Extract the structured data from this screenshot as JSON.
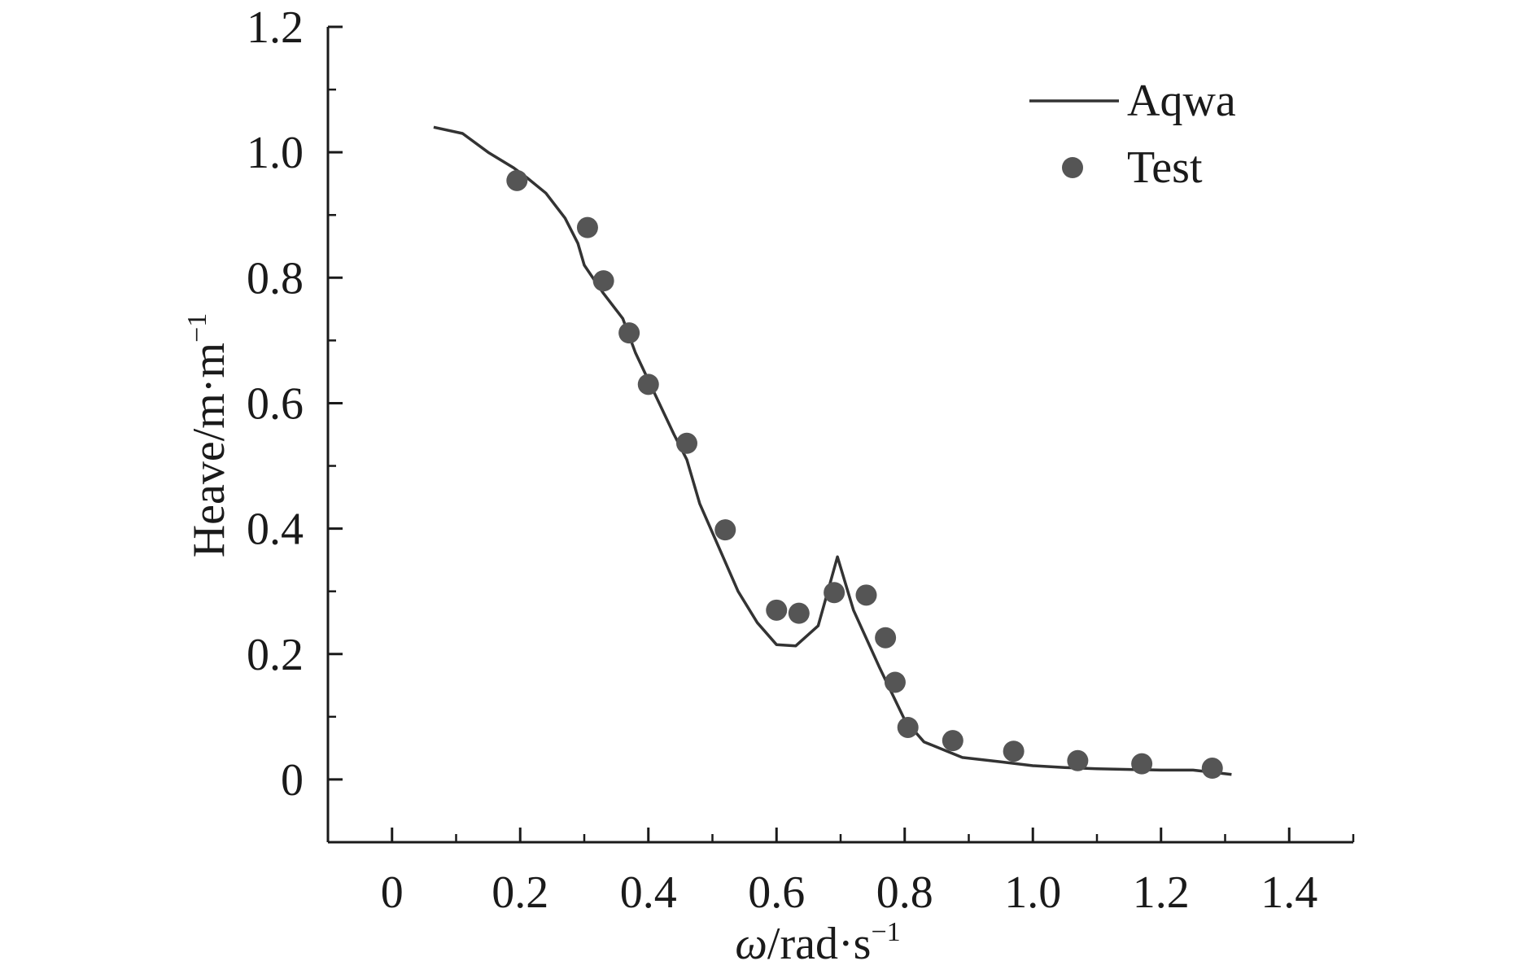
{
  "chart_data": {
    "type": "line",
    "title": "",
    "xlabel": {
      "symbol": "ω",
      "unit": "/rad·s",
      "exp": "−1"
    },
    "ylabel": {
      "text": "Heave/m·m",
      "exp": "−1"
    },
    "xlim": [
      -0.1,
      1.5
    ],
    "ylim": [
      -0.1,
      1.2
    ],
    "x_ticks": [
      0,
      0.2,
      0.4,
      0.6,
      0.8,
      1.0,
      1.2,
      1.4
    ],
    "x_tick_labels": [
      "0",
      "0.2",
      "0.4",
      "0.6",
      "0.8",
      "1.0",
      "1.2",
      "1.4"
    ],
    "y_ticks": [
      0,
      0.2,
      0.4,
      0.6,
      0.8,
      1.0,
      1.2
    ],
    "y_tick_labels": [
      "0",
      "0.2",
      "0.4",
      "0.6",
      "0.8",
      "1.0",
      "1.2"
    ],
    "legend_position": "top-right",
    "series": [
      {
        "name": "Aqwa",
        "kind": "line",
        "color": "#333333",
        "x": [
          0.065,
          0.11,
          0.15,
          0.19,
          0.21,
          0.24,
          0.27,
          0.29,
          0.3,
          0.33,
          0.36,
          0.38,
          0.41,
          0.44,
          0.46,
          0.48,
          0.51,
          0.54,
          0.57,
          0.6,
          0.63,
          0.665,
          0.68,
          0.695,
          0.72,
          0.76,
          0.8,
          0.83,
          0.89,
          0.95,
          1.0,
          1.05,
          1.1,
          1.15,
          1.2,
          1.25,
          1.31
        ],
        "y": [
          1.04,
          1.03,
          1.0,
          0.975,
          0.96,
          0.935,
          0.895,
          0.855,
          0.82,
          0.775,
          0.735,
          0.68,
          0.615,
          0.55,
          0.51,
          0.44,
          0.37,
          0.3,
          0.25,
          0.215,
          0.213,
          0.245,
          0.3,
          0.355,
          0.27,
          0.18,
          0.095,
          0.06,
          0.035,
          0.028,
          0.022,
          0.019,
          0.017,
          0.016,
          0.015,
          0.015,
          0.008
        ]
      },
      {
        "name": "Test",
        "kind": "scatter",
        "color": "#555555",
        "x": [
          0.195,
          0.305,
          0.33,
          0.37,
          0.4,
          0.46,
          0.52,
          0.6,
          0.635,
          0.69,
          0.74,
          0.77,
          0.785,
          0.805,
          0.875,
          0.97,
          1.07,
          1.17,
          1.28
        ],
        "y": [
          0.955,
          0.88,
          0.795,
          0.712,
          0.63,
          0.536,
          0.398,
          0.27,
          0.265,
          0.298,
          0.294,
          0.226,
          0.155,
          0.083,
          0.062,
          0.045,
          0.03,
          0.025,
          0.018
        ]
      }
    ]
  }
}
